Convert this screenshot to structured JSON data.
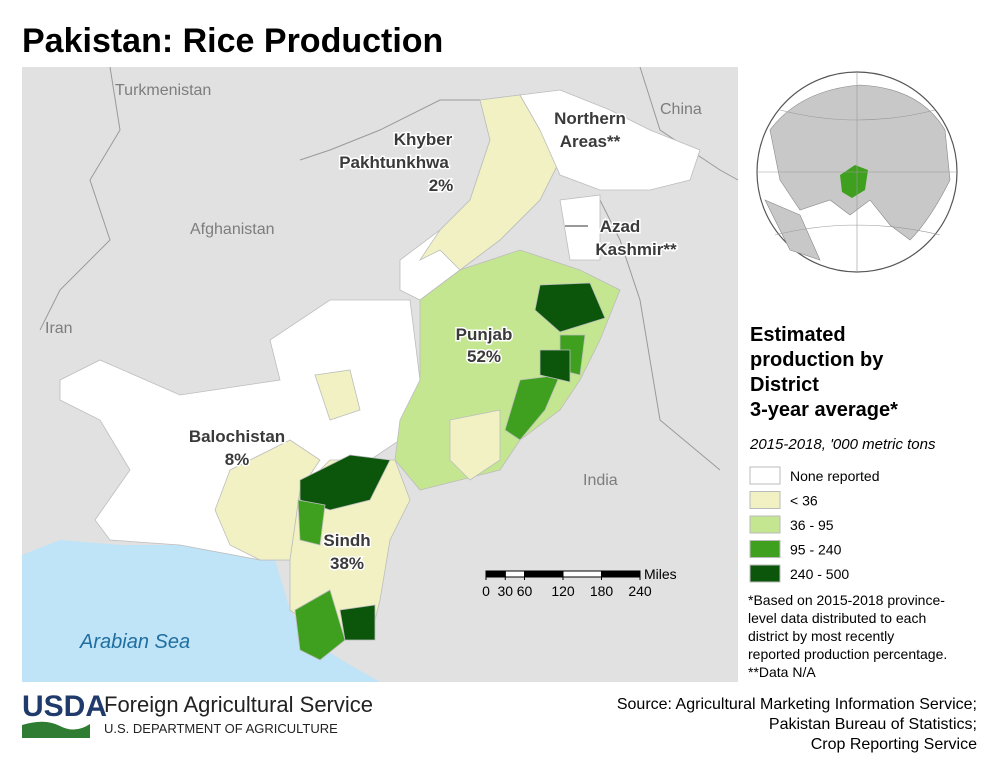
{
  "title": "Pakistan: Rice Production",
  "map": {
    "countries": [
      "Turkmenistan",
      "China",
      "Afghanistan",
      "Iran",
      "India"
    ],
    "sea": "Arabian Sea",
    "provinces": [
      {
        "name": [
          "Khyber",
          "Pakhtunkhwa"
        ],
        "share": "2%"
      },
      {
        "name": [
          "Northern",
          "Areas**"
        ]
      },
      {
        "name": [
          "Azad",
          "Kashmir**"
        ]
      },
      {
        "name": [
          "Punjab"
        ],
        "share": "52%"
      },
      {
        "name": [
          "Balochistan"
        ],
        "share": "8%"
      },
      {
        "name": [
          "Sindh"
        ],
        "share": "38%"
      }
    ],
    "scale": {
      "unit": "Miles",
      "ticks": [
        0,
        30,
        60,
        120,
        180,
        240
      ]
    }
  },
  "legend": {
    "title": [
      "Estimated",
      "production by",
      "District",
      "3-year average*"
    ],
    "subtitle": "2015-2018, '000 metric tons",
    "items": [
      {
        "label": "None reported",
        "color": "#ffffff"
      },
      {
        "label": "< 36",
        "color": "#f1f1c4"
      },
      {
        "label": "36 - 95",
        "color": "#c4e690"
      },
      {
        "label": "95 - 240",
        "color": "#3fa01f"
      },
      {
        "label": "240 - 500",
        "color": "#0b560b"
      }
    ]
  },
  "footnote": [
    "*Based on 2015-2018 province-",
    "level data distributed to each",
    "district by most recently",
    "reported production percentage.",
    "**Data N/A"
  ],
  "footer": {
    "logo": "USDA",
    "agency": "Foreign Agricultural Service",
    "department": "U.S. DEPARTMENT OF AGRICULTURE",
    "source": [
      "Source: Agricultural Marketing Information Service;",
      "Pakistan Bureau of Statistics;",
      "Crop Reporting Service"
    ]
  }
}
